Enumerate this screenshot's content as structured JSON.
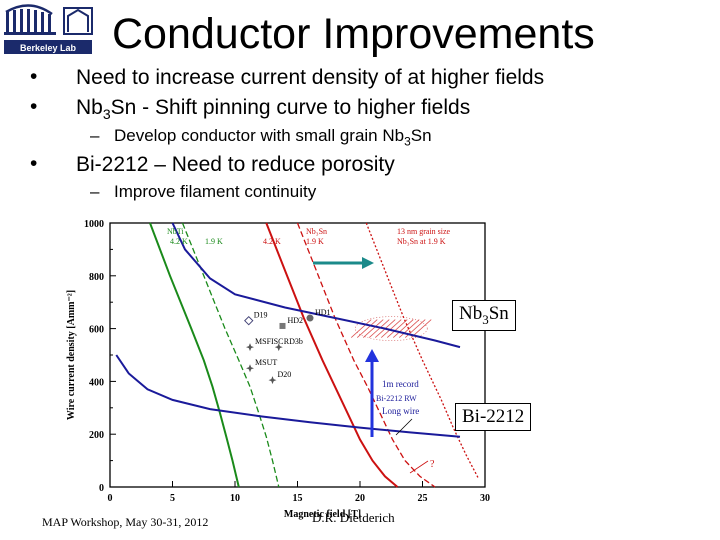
{
  "header": {
    "logo_text": "Berkeley Lab",
    "title": "Conductor Improvements"
  },
  "bullets": {
    "b1": "Need to increase current density of at higher fields",
    "b2_prefix": "Nb",
    "b2_sub": "3",
    "b2_suffix": "Sn -  Shift pinning curve to higher fields",
    "b2a_prefix": "Develop conductor with small grain Nb",
    "b2a_sub": "3",
    "b2a_suffix": "Sn",
    "b3": "Bi-2212 – Need to reduce porosity",
    "b3a": "Improve filament continuity"
  },
  "callouts": {
    "nb3sn_prefix": "Nb",
    "nb3sn_sub": "3",
    "nb3sn_suffix": "Sn",
    "bi2212": "Bi-2212"
  },
  "footer": {
    "left": "MAP Workshop, May 30-31, 2012",
    "right": "D.R. Dietderich"
  },
  "chart_data": {
    "type": "line",
    "xlabel": "Magnetic field [T]",
    "ylabel": "Wire current density [Amm⁻²]",
    "xlim": [
      0,
      30
    ],
    "ylim": [
      0,
      1000
    ],
    "xticks": [
      0,
      5,
      10,
      15,
      20,
      25,
      30
    ],
    "yticks": [
      0,
      200,
      400,
      600,
      800,
      1000
    ],
    "series": [
      {
        "name": "NbTi 4.2 K",
        "color": "#1a8a1a",
        "style": "solid",
        "x": [
          3.2,
          4.8,
          6.5,
          7.5,
          8.2,
          8.8,
          9.3,
          9.8,
          10.3
        ],
        "y": [
          1000,
          800,
          600,
          480,
          380,
          280,
          190,
          100,
          0
        ]
      },
      {
        "name": "NbTi 1.9 K",
        "color": "#1a8a1a",
        "style": "dashed",
        "x": [
          5.8,
          7.5,
          9.2,
          10.3,
          11.2,
          11.9,
          12.5,
          13.0,
          13.5
        ],
        "y": [
          1000,
          800,
          600,
          480,
          380,
          280,
          190,
          100,
          0
        ]
      },
      {
        "name": "Nb3Sn 4.2 K",
        "color": "#cc1111",
        "style": "solid",
        "x": [
          12.5,
          14.0,
          15.5,
          17.0,
          18.0,
          19.0,
          20.0,
          21.0,
          22.0,
          23.0
        ],
        "y": [
          1000,
          820,
          640,
          480,
          380,
          280,
          180,
          100,
          40,
          0
        ]
      },
      {
        "name": "Nb3Sn 1.9 K",
        "color": "#cc1111",
        "style": "dashed",
        "x": [
          15.0,
          16.5,
          18.0,
          19.5,
          20.6,
          21.6,
          22.6,
          23.6,
          24.8,
          26.0
        ],
        "y": [
          1000,
          820,
          640,
          480,
          380,
          280,
          180,
          100,
          40,
          0
        ]
      },
      {
        "name": "13 nm grain size Nb3Sn at 1.9 K",
        "color": "#cc1111",
        "style": "dotted",
        "x": [
          20.5,
          22.0,
          23.5,
          25.0,
          26.5,
          27.5,
          28.5,
          29.5
        ],
        "y": [
          1000,
          820,
          640,
          480,
          330,
          220,
          120,
          30
        ]
      },
      {
        "name": "Bi-2212",
        "color": "#1a1a9a",
        "style": "solid",
        "x": [
          5.0,
          6.0,
          8.0,
          10.0,
          14.0,
          18.0,
          22.0,
          26.0,
          28.0
        ],
        "y": [
          1000,
          900,
          790,
          730,
          680,
          640,
          600,
          555,
          530
        ]
      },
      {
        "name": "Bi-2212 RW long wire",
        "color": "#1a1a9a",
        "style": "solid",
        "x": [
          0.5,
          1.5,
          3.0,
          5.0,
          8.0,
          12.0,
          16.0,
          20.0,
          24.0,
          28.0
        ],
        "y": [
          500,
          430,
          370,
          330,
          295,
          268,
          245,
          225,
          207,
          190
        ]
      }
    ],
    "labels": {
      "nbti": "NbTi",
      "k42": "4.2 K",
      "k19": "1.9 K",
      "nb3sn": "Nb₃Sn",
      "nb3sn_42": "4.2 K",
      "nb3sn_19": "1.9 K",
      "grain1": "13 nm grain size",
      "grain2": "Nb₃Sn at 1.9 K",
      "record": "1m record",
      "bi2212rw": "Bi-2212 RW",
      "longwire": "Long wire",
      "question": "?"
    },
    "points": [
      {
        "label": "D19",
        "x": 11.1,
        "y": 630,
        "marker": "diamond"
      },
      {
        "label": "HD2",
        "x": 13.8,
        "y": 610,
        "marker": "square"
      },
      {
        "label": "HD1",
        "x": 16.0,
        "y": 640,
        "marker": "circle"
      },
      {
        "label": "MSFISC",
        "x": 11.2,
        "y": 530,
        "marker": "star"
      },
      {
        "label": "RD3b",
        "x": 13.5,
        "y": 530,
        "marker": "star"
      },
      {
        "label": "MSUT",
        "x": 11.2,
        "y": 450,
        "marker": "star"
      },
      {
        "label": "D20",
        "x": 13.0,
        "y": 405,
        "marker": "star"
      }
    ]
  }
}
